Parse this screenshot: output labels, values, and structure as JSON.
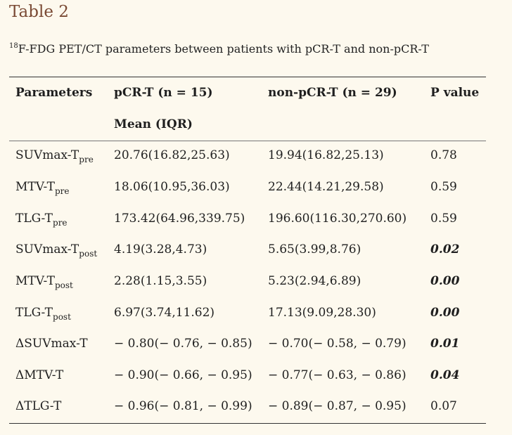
{
  "title": "Table 2",
  "caption": {
    "sup": "18",
    "text": "F-FDG PET/CT parameters between patients with pCR-T and non-pCR-T"
  },
  "header": {
    "col_parameters": "Parameters",
    "col_pcr": "pCR-T (n = 15)",
    "col_nonpcr": "non-pCR-T (n = 29)",
    "col_p": "P value",
    "subheader": "Mean (IQR)"
  },
  "rows": [
    {
      "param": "SUVmax-T",
      "sub": "pre",
      "pcr": "20.76(16.82,25.63)",
      "nonpcr": "19.94(16.82,25.13)",
      "p": "0.78",
      "significant": false
    },
    {
      "param": "MTV-T",
      "sub": "pre",
      "pcr": "18.06(10.95,36.03)",
      "nonpcr": "22.44(14.21,29.58)",
      "p": "0.59",
      "significant": false
    },
    {
      "param": "TLG-T",
      "sub": "pre",
      "pcr": "173.42(64.96,339.75)",
      "nonpcr": "196.60(116.30,270.60)",
      "p": "0.59",
      "significant": false
    },
    {
      "param": "SUVmax-T",
      "sub": "post",
      "pcr": "4.19(3.28,4.73)",
      "nonpcr": "5.65(3.99,8.76)",
      "p": "0.02",
      "significant": true
    },
    {
      "param": "MTV-T",
      "sub": "post",
      "pcr": "2.28(1.15,3.55)",
      "nonpcr": "5.23(2.94,6.89)",
      "p": "0.00",
      "significant": true
    },
    {
      "param": "TLG-T",
      "sub": "post",
      "pcr": "6.97(3.74,11.62)",
      "nonpcr": "17.13(9.09,28.30)",
      "p": "0.00",
      "significant": true
    },
    {
      "param": "ΔSUVmax-T",
      "sub": "",
      "pcr": "− 0.80(− 0.76, − 0.85)",
      "nonpcr": "− 0.70(− 0.58, − 0.79)",
      "p": "0.01",
      "significant": true
    },
    {
      "param": "ΔMTV-T",
      "sub": "",
      "pcr": "− 0.90(− 0.66, − 0.95)",
      "nonpcr": "− 0.77(− 0.63, − 0.86)",
      "p": "0.04",
      "significant": true
    },
    {
      "param": "ΔTLG-T",
      "sub": "",
      "pcr": "− 0.96(− 0.81, − 0.99)",
      "nonpcr": "− 0.89(− 0.87, − 0.95)",
      "p": "0.07",
      "significant": false
    }
  ]
}
